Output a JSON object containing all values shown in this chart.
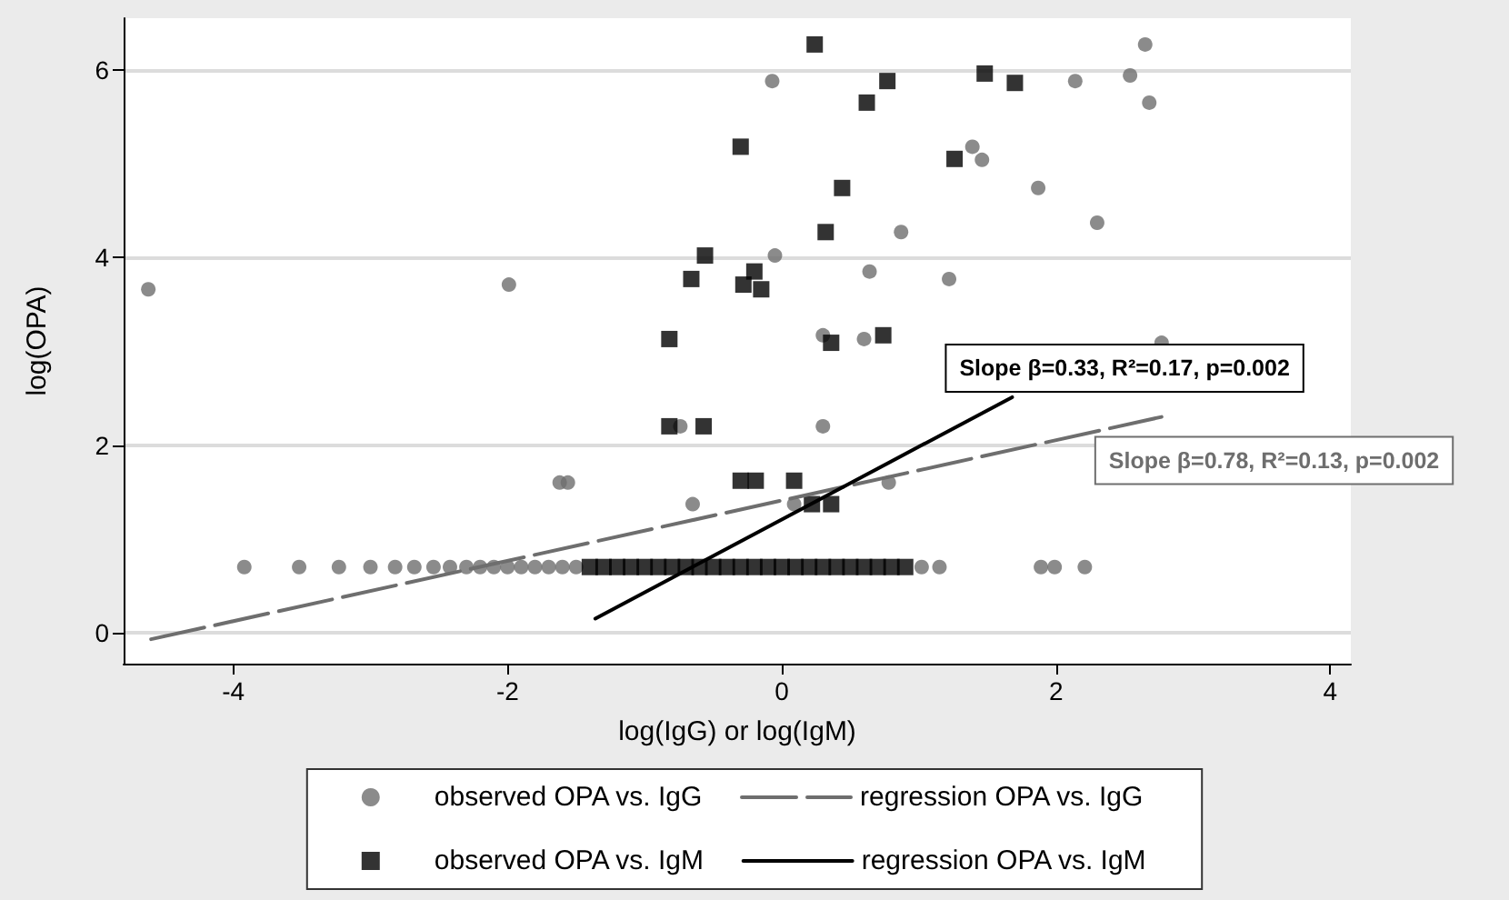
{
  "chart_data": {
    "type": "scatter",
    "xlabel": "log(IgG) or log(IgM)",
    "ylabel": "log(OPA)",
    "xlim": [
      -4.8,
      4.15
    ],
    "ylim": [
      -0.33,
      6.55
    ],
    "xticks": [
      -4,
      -2,
      0,
      2,
      4
    ],
    "yticks": [
      0,
      2,
      4,
      6
    ],
    "grid": "y",
    "legend": "bottom",
    "series": [
      {
        "name": "observed OPA vs. IgG",
        "marker": "circle",
        "color": "#6e6e6e",
        "x": [
          -4.62,
          -1.99,
          -3.92,
          -3.52,
          -3.23,
          -3.0,
          -2.82,
          -2.68,
          -2.54,
          -2.42,
          -2.3,
          -2.2,
          -2.1,
          -2.0,
          -1.9,
          -1.8,
          -1.7,
          -1.6,
          -1.5,
          1.02,
          1.15,
          1.89,
          1.99,
          2.21,
          -1.62,
          -1.56,
          -0.65,
          0.09,
          0.78,
          0.3,
          0.3,
          0.6,
          2.77,
          -0.74,
          -0.07,
          -0.05,
          0.64,
          1.22,
          0.87,
          1.39,
          1.46,
          1.87,
          2.14,
          2.3,
          2.54,
          2.65,
          2.68
        ],
        "values": [
          3.66,
          3.71,
          0.7,
          0.7,
          0.7,
          0.7,
          0.7,
          0.7,
          0.7,
          0.7,
          0.7,
          0.7,
          0.7,
          0.7,
          0.7,
          0.7,
          0.7,
          0.7,
          0.7,
          0.7,
          0.7,
          0.7,
          0.7,
          0.7,
          1.6,
          1.6,
          1.37,
          1.37,
          1.6,
          2.2,
          3.17,
          3.13,
          3.09,
          2.2,
          5.88,
          4.02,
          3.85,
          3.77,
          4.27,
          5.18,
          5.04,
          4.74,
          5.88,
          4.37,
          5.94,
          6.27,
          5.65
        ]
      },
      {
        "name": "regression OPA vs. IgG",
        "type": "line",
        "marker": "none",
        "line_style": "dashed",
        "color": "#6e6e6e",
        "x": [
          -4.6,
          2.77
        ],
        "values": [
          -0.07,
          2.3
        ]
      },
      {
        "name": "observed OPA vs. IgM",
        "marker": "square",
        "color": "#000000",
        "x": [
          0.24,
          0.77,
          0.62,
          1.48,
          1.7,
          -0.3,
          1.26,
          0.44,
          -0.56,
          -0.66,
          -0.2,
          -0.28,
          -0.15,
          0.32,
          -0.82,
          0.74,
          0.36,
          -0.82,
          -0.57,
          -0.3,
          -0.19,
          0.09,
          0.22,
          0.36,
          -1.4,
          -1.3,
          -1.2,
          -1.1,
          -1.0,
          -0.9,
          -0.8,
          -0.7,
          -0.6,
          -0.5,
          -0.4,
          -0.3,
          -0.2,
          -0.1,
          0.0,
          0.1,
          0.2,
          0.3,
          0.4,
          0.5,
          0.6,
          0.7,
          0.8,
          0.9
        ],
        "values": [
          6.27,
          5.88,
          5.65,
          5.96,
          5.86,
          5.18,
          5.05,
          4.74,
          4.02,
          3.77,
          3.85,
          3.71,
          3.66,
          4.27,
          3.13,
          3.17,
          3.09,
          2.2,
          2.2,
          1.62,
          1.62,
          1.62,
          1.37,
          1.37,
          0.7,
          0.7,
          0.7,
          0.7,
          0.7,
          0.7,
          0.7,
          0.7,
          0.7,
          0.7,
          0.7,
          0.7,
          0.7,
          0.7,
          0.7,
          0.7,
          0.7,
          0.7,
          0.7,
          0.7,
          0.7,
          0.7,
          0.7,
          0.7
        ]
      },
      {
        "name": "regression OPA vs. IgM",
        "type": "line",
        "marker": "none",
        "line_style": "solid",
        "color": "#000000",
        "x": [
          -1.36,
          1.68
        ],
        "values": [
          0.15,
          2.51
        ]
      }
    ],
    "annotations": [
      "Slope β=0.33, R²=0.17, p=0.002",
      "Slope β=0.78, R²=0.13, p=0.002"
    ]
  }
}
